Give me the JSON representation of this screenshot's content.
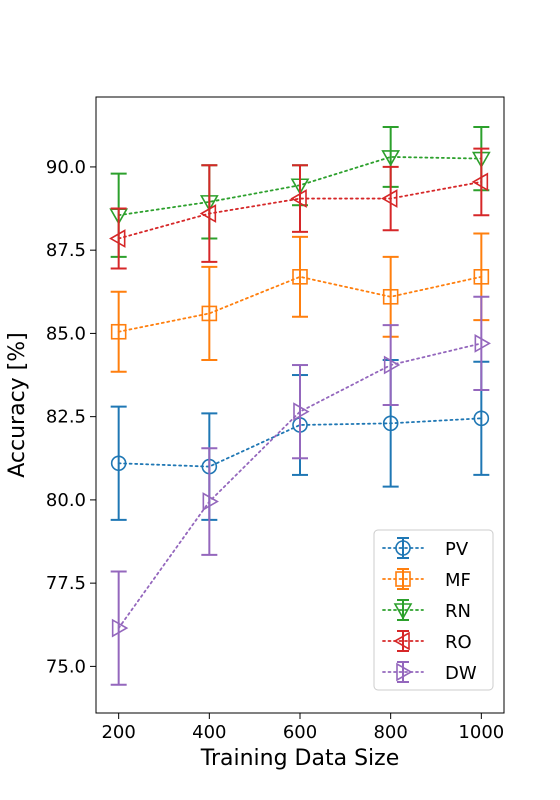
{
  "chart_data": {
    "type": "line",
    "title": "",
    "xlabel": "Training Data Size",
    "ylabel": "Accuracy [%]",
    "x": [
      200,
      400,
      600,
      800,
      1000
    ],
    "x_ticks": [
      "200",
      "400",
      "600",
      "800",
      "1000"
    ],
    "y_ticks": [
      "75.0",
      "77.5",
      "80.0",
      "82.5",
      "85.0",
      "87.5",
      "90.0"
    ],
    "xlim": [
      150,
      1050
    ],
    "ylim": [
      73.6,
      92.1
    ],
    "grid": false,
    "legend_position": "bottom-right",
    "series": [
      {
        "name": "PV",
        "color": "#1f77b4",
        "marker": "circle",
        "values": [
          81.1,
          81.0,
          82.25,
          82.3,
          82.45
        ],
        "errors": [
          1.7,
          1.6,
          1.5,
          1.9,
          1.7
        ]
      },
      {
        "name": "MF",
        "color": "#ff7f0e",
        "marker": "square",
        "values": [
          85.05,
          85.6,
          86.7,
          86.1,
          86.7
        ],
        "errors": [
          1.2,
          1.4,
          1.2,
          1.2,
          1.3
        ]
      },
      {
        "name": "RN",
        "color": "#2ca02c",
        "marker": "triangle-down",
        "values": [
          88.55,
          88.95,
          89.45,
          90.3,
          90.25
        ],
        "errors": [
          1.25,
          1.1,
          0.6,
          0.9,
          0.95
        ]
      },
      {
        "name": "RO",
        "color": "#d62728",
        "marker": "triangle-left",
        "values": [
          87.85,
          88.6,
          89.05,
          89.05,
          89.55
        ],
        "errors": [
          0.9,
          1.45,
          1.0,
          0.95,
          1.0
        ]
      },
      {
        "name": "DW",
        "color": "#9467bd",
        "marker": "triangle-right",
        "values": [
          76.15,
          79.95,
          82.65,
          84.05,
          84.7
        ],
        "errors": [
          1.7,
          1.6,
          1.4,
          1.2,
          1.4
        ]
      }
    ]
  }
}
